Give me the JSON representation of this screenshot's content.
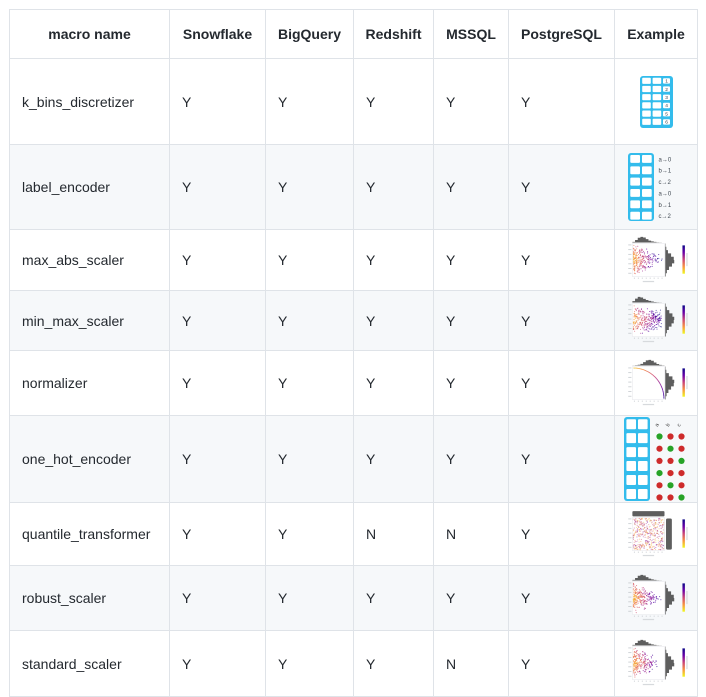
{
  "colors": {
    "table_blue": "#33bcec",
    "dot_green": "#27a327",
    "dot_red": "#ce2b2b",
    "hist_gray": "#4d4d4d",
    "row_alt_bg": "#f6f8fa",
    "border": "#dfe3e8",
    "text": "#24292f",
    "plasma": [
      "#0d0887",
      "#6a00a8",
      "#cb4679",
      "#f89441",
      "#f0f921"
    ]
  },
  "table": {
    "columns": [
      {
        "key": "name",
        "label": "macro name"
      },
      {
        "key": "snowflake",
        "label": "Snowflake"
      },
      {
        "key": "bigquery",
        "label": "BigQuery"
      },
      {
        "key": "redshift",
        "label": "Redshift"
      },
      {
        "key": "mssql",
        "label": "MSSQL"
      },
      {
        "key": "postgresql",
        "label": "PostgreSQL"
      },
      {
        "key": "example",
        "label": "Example"
      }
    ],
    "rows": [
      {
        "name": "k_bins_discretizer",
        "snowflake": "Y",
        "bigquery": "Y",
        "redshift": "Y",
        "mssql": "Y",
        "postgresql": "Y",
        "example": {
          "kind": "binned-table",
          "labels": [
            "1",
            "2",
            "3",
            "4",
            "5",
            "6"
          ]
        }
      },
      {
        "name": "label_encoder",
        "snowflake": "Y",
        "bigquery": "Y",
        "redshift": "Y",
        "mssql": "Y",
        "postgresql": "Y",
        "example": {
          "kind": "label-map",
          "mappings": [
            "a→0",
            "b→1",
            "c→2",
            "a→0",
            "b→1",
            "c→2"
          ]
        }
      },
      {
        "name": "max_abs_scaler",
        "snowflake": "Y",
        "bigquery": "Y",
        "redshift": "Y",
        "mssql": "Y",
        "postgresql": "Y",
        "example": {
          "kind": "jointplot",
          "variant": "triangle"
        }
      },
      {
        "name": "min_max_scaler",
        "snowflake": "Y",
        "bigquery": "Y",
        "redshift": "Y",
        "mssql": "Y",
        "postgresql": "Y",
        "example": {
          "kind": "jointplot",
          "variant": "spread"
        }
      },
      {
        "name": "normalizer",
        "snowflake": "Y",
        "bigquery": "Y",
        "redshift": "Y",
        "mssql": "Y",
        "postgresql": "Y",
        "example": {
          "kind": "jointplot",
          "variant": "curve"
        }
      },
      {
        "name": "one_hot_encoder",
        "snowflake": "Y",
        "bigquery": "Y",
        "redshift": "Y",
        "mssql": "Y",
        "postgresql": "Y",
        "example": {
          "kind": "one-hot",
          "categories": [
            "a",
            "b",
            "c"
          ],
          "pattern": [
            [
              1,
              0,
              0
            ],
            [
              0,
              1,
              0
            ],
            [
              0,
              0,
              1
            ],
            [
              1,
              0,
              0
            ],
            [
              0,
              1,
              0
            ],
            [
              0,
              0,
              1
            ]
          ]
        }
      },
      {
        "name": "quantile_transformer",
        "snowflake": "Y",
        "bigquery": "Y",
        "redshift": "N",
        "mssql": "N",
        "postgresql": "Y",
        "example": {
          "kind": "jointplot",
          "variant": "uniform"
        }
      },
      {
        "name": "robust_scaler",
        "snowflake": "Y",
        "bigquery": "Y",
        "redshift": "Y",
        "mssql": "Y",
        "postgresql": "Y",
        "example": {
          "kind": "jointplot",
          "variant": "triangle"
        }
      },
      {
        "name": "standard_scaler",
        "snowflake": "Y",
        "bigquery": "Y",
        "redshift": "Y",
        "mssql": "N",
        "postgresql": "Y",
        "example": {
          "kind": "jointplot",
          "variant": "triangle"
        }
      }
    ]
  }
}
